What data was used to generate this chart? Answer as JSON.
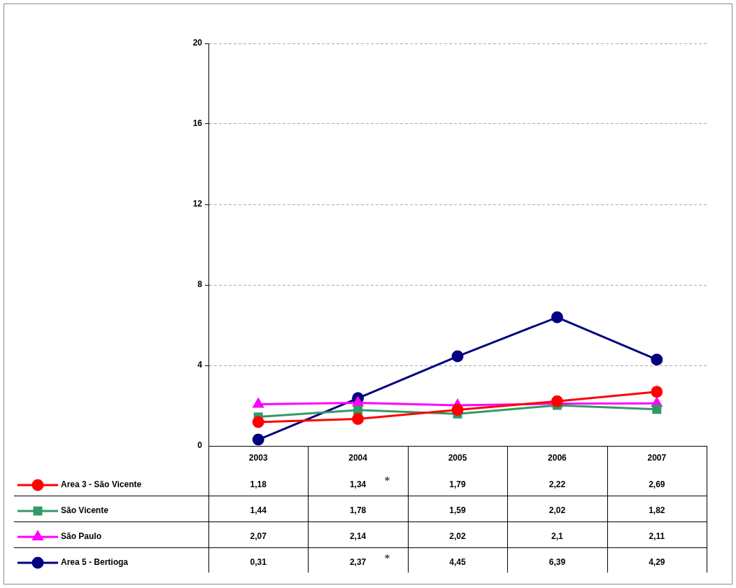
{
  "chart_data": {
    "type": "line",
    "categories": [
      "2003",
      "2004",
      "2005",
      "2006",
      "2007"
    ],
    "series": [
      {
        "name": "Area 3 - São Vicente",
        "color": "#ff0000",
        "marker": "circle",
        "values": [
          1.18,
          1.34,
          1.79,
          2.22,
          2.69
        ],
        "value_labels": [
          "1,18",
          "1,34",
          "1,79",
          "2,22",
          "2,69"
        ]
      },
      {
        "name": "São Vicente",
        "color": "#339966",
        "marker": "square",
        "values": [
          1.44,
          1.78,
          1.59,
          2.02,
          1.82
        ],
        "value_labels": [
          "1,44",
          "1,78",
          "1,59",
          "2,02",
          "1,82"
        ]
      },
      {
        "name": "São Paulo",
        "color": "#ff00ff",
        "marker": "triangle",
        "values": [
          2.07,
          2.14,
          2.02,
          2.1,
          2.11
        ],
        "value_labels": [
          "2,07",
          "2,14",
          "2,02",
          "2,1",
          "2,11"
        ]
      },
      {
        "name": "Area 5 - Bertioga",
        "color": "#000080",
        "marker": "circle",
        "values": [
          0.31,
          2.37,
          4.45,
          6.39,
          4.29
        ],
        "value_labels": [
          "0,31",
          "2,37",
          "4,45",
          "6,39",
          "4,29"
        ]
      }
    ],
    "ylim": [
      0,
      20
    ],
    "yticks": [
      0,
      4,
      8,
      12,
      16,
      20
    ],
    "grid": "y",
    "legend": "bottom",
    "line_style": "solid",
    "annotations": [
      "*",
      "*"
    ]
  }
}
